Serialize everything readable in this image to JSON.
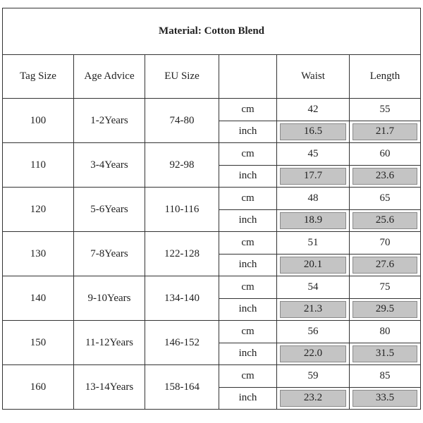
{
  "title": "Material: Cotton Blend",
  "headers": {
    "tag_size": "Tag Size",
    "age_advice": "Age Advice",
    "eu_size": "EU Size",
    "unit": "",
    "waist": "Waist",
    "length": "Length"
  },
  "units": {
    "cm": "cm",
    "inch": "inch"
  },
  "rows": [
    {
      "tag": "100",
      "age": "1-2Years",
      "eu": "74-80",
      "cm": {
        "waist": "42",
        "length": "55"
      },
      "inch": {
        "waist": "16.5",
        "length": "21.7"
      }
    },
    {
      "tag": "110",
      "age": "3-4Years",
      "eu": "92-98",
      "cm": {
        "waist": "45",
        "length": "60"
      },
      "inch": {
        "waist": "17.7",
        "length": "23.6"
      }
    },
    {
      "tag": "120",
      "age": "5-6Years",
      "eu": "110-116",
      "cm": {
        "waist": "48",
        "length": "65"
      },
      "inch": {
        "waist": "18.9",
        "length": "25.6"
      }
    },
    {
      "tag": "130",
      "age": "7-8Years",
      "eu": "122-128",
      "cm": {
        "waist": "51",
        "length": "70"
      },
      "inch": {
        "waist": "20.1",
        "length": "27.6"
      }
    },
    {
      "tag": "140",
      "age": "9-10Years",
      "eu": "134-140",
      "cm": {
        "waist": "54",
        "length": "75"
      },
      "inch": {
        "waist": "21.3",
        "length": "29.5"
      }
    },
    {
      "tag": "150",
      "age": "11-12Years",
      "eu": "146-152",
      "cm": {
        "waist": "56",
        "length": "80"
      },
      "inch": {
        "waist": "22.0",
        "length": "31.5"
      }
    },
    {
      "tag": "160",
      "age": "13-14Years",
      "eu": "158-164",
      "cm": {
        "waist": "59",
        "length": "85"
      },
      "inch": {
        "waist": "23.2",
        "length": "33.5"
      }
    }
  ]
}
